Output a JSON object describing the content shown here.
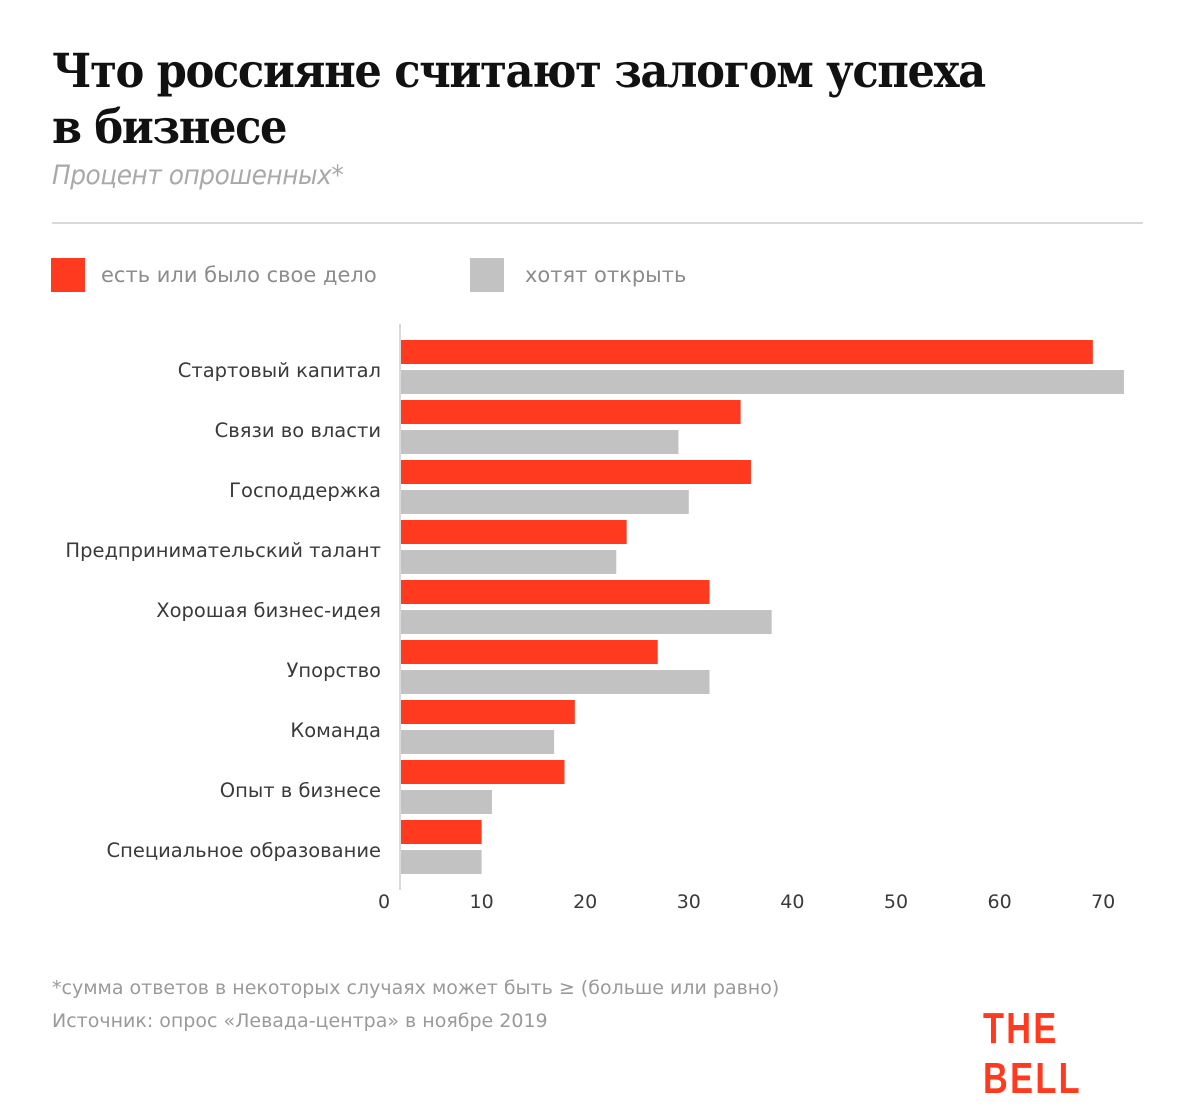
{
  "header": {
    "title_line1": "Что россияне считают залогом успеха",
    "title_line2": "в бизнесе",
    "subtitle": "Процент опрошенных*"
  },
  "colors": {
    "accent": "#FF3A1F",
    "secondary": "#C2C2C2",
    "axis": "#D9D9D9",
    "label": "#3A3A3A"
  },
  "chart_data": {
    "type": "bar",
    "orientation": "horizontal",
    "title": "Что россияне считают залогом успеха в бизнесе",
    "subtitle": "Процент опрошенных*",
    "xlabel": "",
    "ylabel": "",
    "xlim": [
      0,
      72
    ],
    "x_ticks": [
      0,
      10,
      20,
      30,
      40,
      50,
      60,
      70
    ],
    "grid": false,
    "legend_position": "top-left",
    "categories": [
      "Стартовый капитал",
      "Связи во власти",
      "Господдержка",
      "Предпринимательский талант",
      "Хорошая бизнес-идея",
      "Упорство",
      "Команда",
      "Опыт в бизнесе",
      "Специальное образование"
    ],
    "series": [
      {
        "name": "есть или было свое дело",
        "color": "#FF3A1F",
        "values": [
          69,
          35,
          36,
          24,
          32,
          27,
          19,
          18,
          10
        ]
      },
      {
        "name": "хотят открыть",
        "color": "#C2C2C2",
        "values": [
          72,
          29,
          30,
          23,
          38,
          32,
          17,
          11,
          10
        ]
      }
    ]
  },
  "footer": {
    "note": "*сумма ответов в некоторых случаях может быть ≥ (больше или равно)",
    "source": "Источник: опрос «Левада-центра» в ноябре 2019",
    "brand": "THE BELL"
  }
}
